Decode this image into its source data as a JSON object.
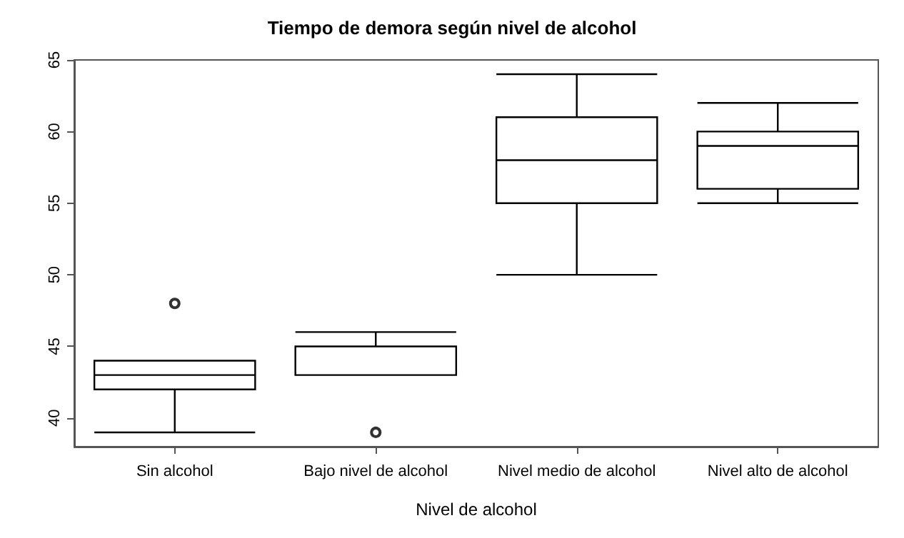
{
  "chart_data": {
    "type": "box",
    "title": "Tiempo de demora según nivel de alcohol",
    "xlabel": "Nivel de alcohol",
    "categories": [
      "Sin alcohol",
      "Bajo nivel de alcohol",
      "Nivel medio de alcohol",
      "Nivel alto de alcohol"
    ],
    "boxes": [
      {
        "low": 39,
        "q1": 42,
        "median": 43,
        "q3": 44,
        "high": 44,
        "outliers": [
          48
        ]
      },
      {
        "low": 43,
        "q1": 43,
        "median": 45,
        "q3": 45,
        "high": 46,
        "outliers": [
          39
        ]
      },
      {
        "low": 50,
        "q1": 55,
        "median": 58,
        "q3": 61,
        "high": 64
      },
      {
        "low": 55,
        "q1": 56,
        "median": 59,
        "q3": 60,
        "high": 62
      }
    ],
    "color": "#000000",
    "ylim": [
      38,
      65
    ],
    "yticks": [
      40,
      45,
      50,
      55,
      60,
      65
    ],
    "grid": false
  }
}
